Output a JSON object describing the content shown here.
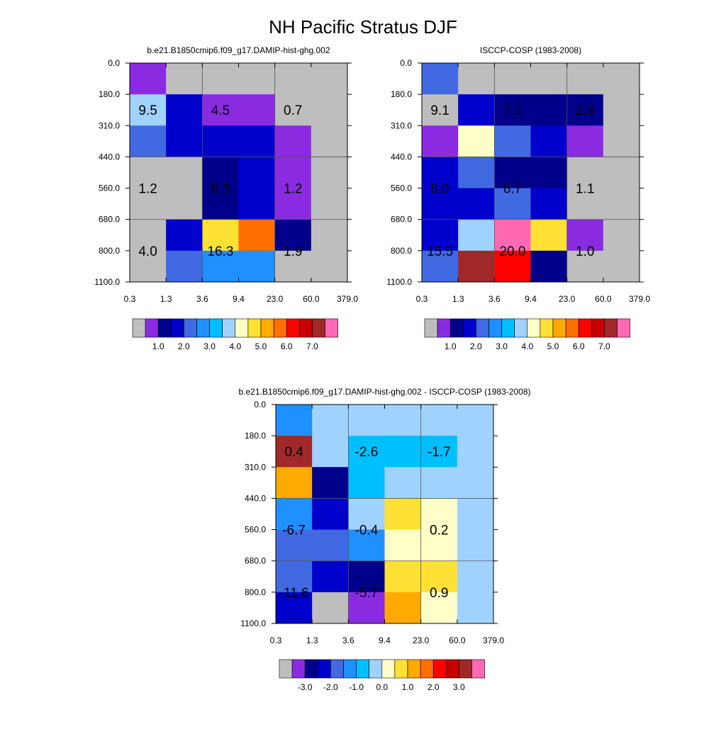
{
  "title": "NH Pacific Stratus DJF",
  "colors": {
    "grey": "#bebebe",
    "purple": "#8a2be2",
    "navy": "#00008b",
    "mediumblue": "#0000cd",
    "royal": "#4169e1",
    "dodger": "#1e90ff",
    "deepsky": "#00bfff",
    "lightblue": "#a0d2ff",
    "cream": "#ffffc8",
    "gold": "#ffe135",
    "orangeyellow": "#ffaa00",
    "orange": "#ff6e00",
    "red": "#ff0000",
    "darkred": "#c80000",
    "brown": "#a02828",
    "pink": "#ff69b4"
  },
  "chart_data": [
    {
      "type": "heatmap",
      "name": "model",
      "title": "b.e21.B1850cmip6.f09_g17.DAMIP-hist-ghg.002",
      "x_ticks": [
        "0.3",
        "1.3",
        "3.6",
        "9.4",
        "23.0",
        "60.0",
        "379.0"
      ],
      "y_ticks": [
        "0.0",
        "180.0",
        "310.0",
        "440.0",
        "560.0",
        "680.0",
        "800.0",
        "1100.0"
      ],
      "cells": [
        [
          "purple",
          "grey",
          "grey",
          "grey",
          "grey",
          "grey"
        ],
        [
          "lightblue",
          "mediumblue",
          "purple",
          "purple",
          "grey",
          "grey"
        ],
        [
          "royal",
          "mediumblue",
          "mediumblue",
          "mediumblue",
          "purple",
          "grey"
        ],
        [
          "grey",
          "grey",
          "navy",
          "mediumblue",
          "purple",
          "grey"
        ],
        [
          "grey",
          "grey",
          "navy",
          "mediumblue",
          "purple",
          "grey"
        ],
        [
          "grey",
          "mediumblue",
          "gold",
          "orange",
          "navy",
          "grey"
        ],
        [
          "grey",
          "royal",
          "dodger",
          "dodger",
          "grey",
          "grey"
        ]
      ],
      "labels": [
        {
          "text": "9.5",
          "col": 0.5,
          "row": 1.5
        },
        {
          "text": "4.5",
          "col": 2.5,
          "row": 1.5
        },
        {
          "text": "0.7",
          "col": 4.5,
          "row": 1.5
        },
        {
          "text": "1.2",
          "col": 0.5,
          "row": 4.0
        },
        {
          "text": "6.3",
          "col": 2.5,
          "row": 4.0
        },
        {
          "text": "1.2",
          "col": 4.5,
          "row": 4.0
        },
        {
          "text": "4.0",
          "col": 0.5,
          "row": 6.0
        },
        {
          "text": "16.3",
          "col": 2.5,
          "row": 6.0
        },
        {
          "text": "1.9",
          "col": 4.5,
          "row": 6.0
        }
      ],
      "colorbar": {
        "colors": [
          "grey",
          "purple",
          "navy",
          "mediumblue",
          "royal",
          "dodger",
          "deepsky",
          "lightblue",
          "cream",
          "gold",
          "orangeyellow",
          "orange",
          "red",
          "darkred",
          "brown",
          "pink"
        ],
        "labels": [
          "1.0",
          "2.0",
          "3.0",
          "4.0",
          "5.0",
          "6.0",
          "7.0"
        ],
        "label_start_boundary": 2
      }
    },
    {
      "type": "heatmap",
      "name": "obs",
      "title": "ISCCP-COSP (1983-2008)",
      "x_ticks": [
        "0.3",
        "1.3",
        "3.6",
        "9.4",
        "23.0",
        "60.0",
        "379.0"
      ],
      "y_ticks": [
        "0.0",
        "180.0",
        "310.0",
        "440.0",
        "560.0",
        "680.0",
        "800.0",
        "1100.0"
      ],
      "cells": [
        [
          "royal",
          "grey",
          "grey",
          "grey",
          "grey",
          "grey"
        ],
        [
          "grey",
          "mediumblue",
          "navy",
          "navy",
          "navy",
          "grey"
        ],
        [
          "purple",
          "cream",
          "royal",
          "mediumblue",
          "purple",
          "grey"
        ],
        [
          "mediumblue",
          "royal",
          "navy",
          "navy",
          "grey",
          "grey"
        ],
        [
          "mediumblue",
          "mediumblue",
          "royal",
          "mediumblue",
          "grey",
          "grey"
        ],
        [
          "mediumblue",
          "lightblue",
          "pink",
          "gold",
          "purple",
          "grey"
        ],
        [
          "royal",
          "brown",
          "red",
          "navy",
          "grey",
          "grey"
        ]
      ],
      "labels": [
        {
          "text": "9.1",
          "col": 0.5,
          "row": 1.5
        },
        {
          "text": "7.1",
          "col": 2.5,
          "row": 1.5
        },
        {
          "text": "2.4",
          "col": 4.5,
          "row": 1.5
        },
        {
          "text": "8.0",
          "col": 0.5,
          "row": 4.0
        },
        {
          "text": "6.7",
          "col": 2.5,
          "row": 4.0
        },
        {
          "text": "1.1",
          "col": 4.5,
          "row": 4.0
        },
        {
          "text": "15.5",
          "col": 0.5,
          "row": 6.0
        },
        {
          "text": "20.0",
          "col": 2.5,
          "row": 6.0
        },
        {
          "text": "1.0",
          "col": 4.5,
          "row": 6.0
        }
      ],
      "colorbar": {
        "colors": [
          "grey",
          "purple",
          "navy",
          "mediumblue",
          "royal",
          "dodger",
          "deepsky",
          "lightblue",
          "cream",
          "gold",
          "orangeyellow",
          "orange",
          "red",
          "darkred",
          "brown",
          "pink"
        ],
        "labels": [
          "1.0",
          "2.0",
          "3.0",
          "4.0",
          "5.0",
          "6.0",
          "7.0"
        ],
        "label_start_boundary": 2
      }
    },
    {
      "type": "heatmap",
      "name": "diff",
      "title": "b.e21.B1850cmip6.f09_g17.DAMIP-hist-ghg.002 - ISCCP-COSP (1983-2008)",
      "x_ticks": [
        "0.3",
        "1.3",
        "3.6",
        "9.4",
        "23.0",
        "60.0",
        "379.0"
      ],
      "y_ticks": [
        "0.0",
        "180.0",
        "310.0",
        "440.0",
        "560.0",
        "680.0",
        "800.0",
        "1100.0"
      ],
      "cells": [
        [
          "dodger",
          "lightblue",
          "lightblue",
          "lightblue",
          "lightblue",
          "lightblue"
        ],
        [
          "brown",
          "lightblue",
          "deepsky",
          "deepsky",
          "deepsky",
          "lightblue"
        ],
        [
          "orangeyellow",
          "navy",
          "deepsky",
          "lightblue",
          "lightblue",
          "lightblue"
        ],
        [
          "dodger",
          "mediumblue",
          "lightblue",
          "gold",
          "cream",
          "lightblue"
        ],
        [
          "royal",
          "royal",
          "dodger",
          "cream",
          "cream",
          "lightblue"
        ],
        [
          "royal",
          "mediumblue",
          "navy",
          "gold",
          "gold",
          "lightblue"
        ],
        [
          "mediumblue",
          "grey",
          "purple",
          "orangeyellow",
          "cream",
          "lightblue"
        ]
      ],
      "labels": [
        {
          "text": "0.4",
          "col": 0.5,
          "row": 1.5
        },
        {
          "text": "-2.6",
          "col": 2.5,
          "row": 1.5
        },
        {
          "text": "-1.7",
          "col": 4.5,
          "row": 1.5
        },
        {
          "text": "-6.7",
          "col": 0.5,
          "row": 4.0
        },
        {
          "text": "-0.4",
          "col": 2.5,
          "row": 4.0
        },
        {
          "text": "0.2",
          "col": 4.5,
          "row": 4.0
        },
        {
          "text": "-11.6",
          "col": 0.5,
          "row": 6.0
        },
        {
          "text": "-5.7",
          "col": 2.5,
          "row": 6.0
        },
        {
          "text": "0.9",
          "col": 4.5,
          "row": 6.0
        }
      ],
      "colorbar": {
        "colors": [
          "grey",
          "purple",
          "navy",
          "mediumblue",
          "royal",
          "dodger",
          "deepsky",
          "lightblue",
          "cream",
          "gold",
          "orangeyellow",
          "orange",
          "red",
          "darkred",
          "brown",
          "pink"
        ],
        "labels": [
          "-3.0",
          "-2.0",
          "-1.0",
          "0.0",
          "1.0",
          "2.0",
          "3.0"
        ],
        "label_start_boundary": 2
      }
    }
  ]
}
